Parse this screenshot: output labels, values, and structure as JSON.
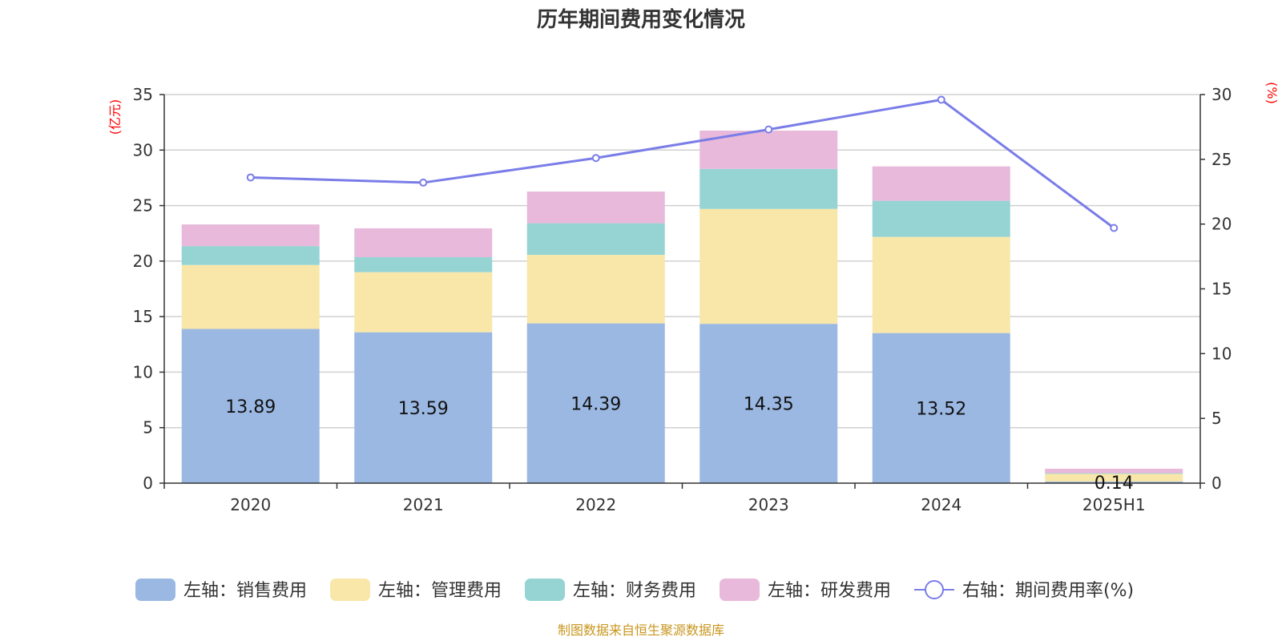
{
  "chart_data": {
    "type": "bar",
    "title": "历年期间费用变化情况",
    "categories": [
      "2020",
      "2021",
      "2022",
      "2023",
      "2024",
      "2025H1"
    ],
    "left_axis": {
      "unit_label": "(亿元)",
      "ylim": [
        0,
        35
      ],
      "ticks": [
        "0",
        "5",
        "10",
        "15",
        "20",
        "25",
        "30",
        "35"
      ]
    },
    "right_axis": {
      "unit_label": "(%)",
      "ylim": [
        0,
        30
      ],
      "ticks": [
        "0",
        "5",
        "10",
        "15",
        "20",
        "25",
        "30"
      ]
    },
    "series": [
      {
        "name": "左轴：销售费用",
        "kind": "bar",
        "axis": "left",
        "color": "#9bb8e3",
        "values": [
          13.89,
          13.59,
          14.39,
          14.35,
          13.52,
          0.14
        ],
        "labels": [
          "13.89",
          "13.59",
          "14.39",
          "14.35",
          "13.52",
          "0.14"
        ]
      },
      {
        "name": "左轴：管理费用",
        "kind": "bar",
        "axis": "left",
        "color": "#f8e7a9",
        "values": [
          5.76,
          5.41,
          6.17,
          10.35,
          8.66,
          0.7
        ]
      },
      {
        "name": "左轴：财务费用",
        "kind": "bar",
        "axis": "left",
        "color": "#96d4d4",
        "values": [
          1.7,
          1.35,
          2.85,
          3.6,
          3.25,
          0.06
        ]
      },
      {
        "name": "左轴：研发费用",
        "kind": "bar",
        "axis": "left",
        "color": "#e8b9da",
        "values": [
          1.95,
          2.6,
          2.85,
          3.45,
          3.1,
          0.4
        ]
      },
      {
        "name": "右轴：期间费用率(%)",
        "kind": "line",
        "axis": "right",
        "color": "#7a7de8",
        "values": [
          23.6,
          23.2,
          25.1,
          27.3,
          29.6,
          19.7
        ]
      }
    ],
    "grid": true,
    "legend_position": "bottom"
  },
  "source_text": "制图数据来自恒生聚源数据库"
}
